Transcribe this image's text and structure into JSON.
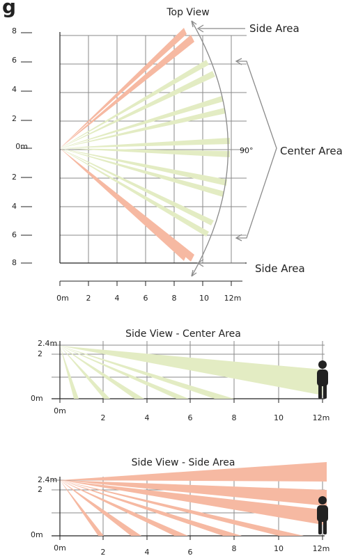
{
  "top_view": {
    "title": "Top View",
    "header_partial": "g",
    "y_labels": [
      "8",
      "6",
      "4",
      "2",
      "0m",
      "2",
      "4",
      "6",
      "8"
    ],
    "x_labels": [
      "0m",
      "2",
      "4",
      "6",
      "8",
      "10",
      "12m"
    ],
    "angle_label": "90°",
    "side_area_label": "Side Area",
    "center_area_label": "Center Area",
    "colors": {
      "side_beam": "#f6b9a2",
      "center_beam": "#e3ecc3",
      "grid": "#8a8a8a"
    }
  },
  "side_view_center": {
    "title": "Side View - Center Area",
    "y_labels": [
      "2.4m",
      "2",
      "0m"
    ],
    "x_labels": [
      "0m",
      "2",
      "4",
      "6",
      "8",
      "10",
      "12m"
    ],
    "beam_color": "#e3ecc3"
  },
  "side_view_side": {
    "title": "Side View - Side Area",
    "y_labels": [
      "2.4m",
      "2",
      "0m"
    ],
    "x_labels": [
      "0m",
      "2",
      "4",
      "6",
      "8",
      "10",
      "12m"
    ],
    "beam_color": "#f6b9a2"
  },
  "person_icon": "person-silhouette-icon"
}
